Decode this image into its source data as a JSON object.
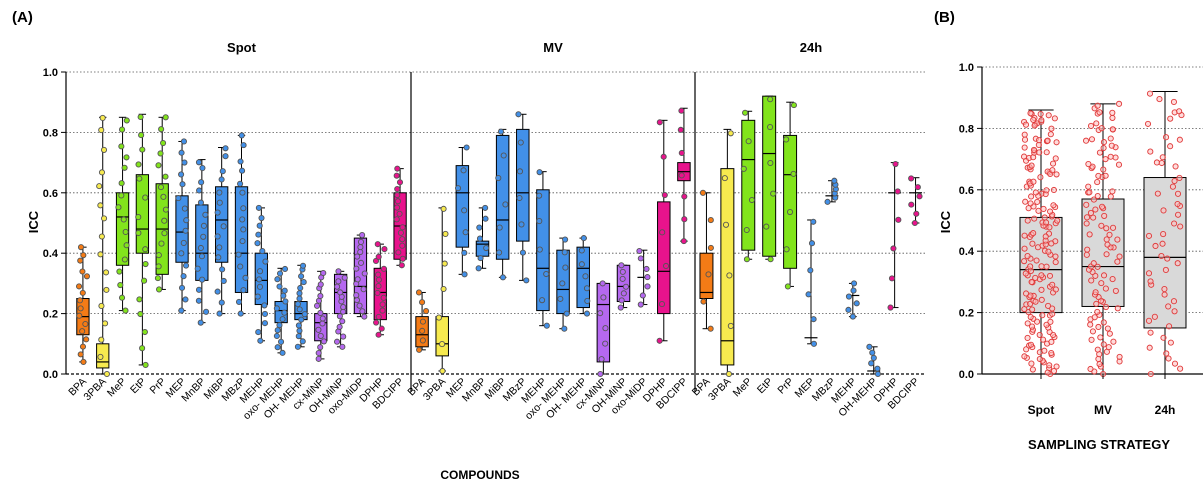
{
  "chart_data": [
    {
      "panel_label": "(A)",
      "type": "box",
      "ylabel": "ICC",
      "xlabel": "COMPOUNDS",
      "ylim": [
        0,
        1.0
      ],
      "yticks": [
        "0.0",
        "0.2",
        "0.4",
        "0.6",
        "0.8",
        "1.0"
      ],
      "grid": "horizontal dotted",
      "groups": [
        {
          "title": "Spot",
          "items": [
            {
              "label": "BPA",
              "color": "#f47b16",
              "min": 0.04,
              "q1": 0.13,
              "median": 0.19,
              "q3": 0.25,
              "max": 0.42
            },
            {
              "label": "3PBA",
              "color": "#f7ea4f",
              "min": 0.0,
              "q1": 0.02,
              "median": 0.04,
              "q3": 0.1,
              "max": 0.85
            },
            {
              "label": "MeP",
              "color": "#82e41c",
              "min": 0.21,
              "q1": 0.36,
              "median": 0.52,
              "q3": 0.6,
              "max": 0.85
            },
            {
              "label": "EtP",
              "color": "#82e41c",
              "min": 0.03,
              "q1": 0.4,
              "median": 0.48,
              "q3": 0.66,
              "max": 0.86
            },
            {
              "label": "PrP",
              "color": "#82e41c",
              "min": 0.28,
              "q1": 0.33,
              "median": 0.48,
              "q3": 0.63,
              "max": 0.85
            },
            {
              "label": "MEP",
              "color": "#4290e8",
              "min": 0.21,
              "q1": 0.37,
              "median": 0.47,
              "q3": 0.59,
              "max": 0.77
            },
            {
              "label": "MnBP",
              "color": "#4290e8",
              "min": 0.17,
              "q1": 0.31,
              "median": 0.4,
              "q3": 0.56,
              "max": 0.71
            },
            {
              "label": "MiBP",
              "color": "#4290e8",
              "min": 0.2,
              "q1": 0.37,
              "median": 0.51,
              "q3": 0.62,
              "max": 0.75
            },
            {
              "label": "MBzP",
              "color": "#4290e8",
              "min": 0.2,
              "q1": 0.27,
              "median": 0.4,
              "q3": 0.62,
              "max": 0.79
            },
            {
              "label": "MEHP",
              "color": "#4290e8",
              "min": 0.11,
              "q1": 0.23,
              "median": 0.31,
              "q3": 0.4,
              "max": 0.55
            },
            {
              "label": "oxo- MEHP",
              "color": "#4290e8",
              "min": 0.07,
              "q1": 0.17,
              "median": 0.21,
              "q3": 0.24,
              "max": 0.35
            },
            {
              "label": "OH- MEHP",
              "color": "#4290e8",
              "min": 0.09,
              "q1": 0.18,
              "median": 0.2,
              "q3": 0.24,
              "max": 0.36
            },
            {
              "label": "cx-MiNP",
              "color": "#b568f0",
              "min": 0.05,
              "q1": 0.11,
              "median": 0.17,
              "q3": 0.2,
              "max": 0.34
            },
            {
              "label": "OH-MiNP",
              "color": "#b568f0",
              "min": 0.09,
              "q1": 0.2,
              "median": 0.27,
              "q3": 0.33,
              "max": 0.34
            },
            {
              "label": "oxo-MiDP",
              "color": "#b568f0",
              "min": 0.19,
              "q1": 0.2,
              "median": 0.29,
              "q3": 0.45,
              "max": 0.46
            },
            {
              "label": "DPHP",
              "color": "#e8138c",
              "min": 0.13,
              "q1": 0.18,
              "median": 0.27,
              "q3": 0.35,
              "max": 0.43
            },
            {
              "label": "BDCIPP",
              "color": "#e8138c",
              "min": 0.36,
              "q1": 0.38,
              "median": 0.49,
              "q3": 0.6,
              "max": 0.68
            }
          ]
        },
        {
          "title": "MV",
          "items": [
            {
              "label": "BPA",
              "color": "#f47b16",
              "min": 0.08,
              "q1": 0.09,
              "median": 0.13,
              "q3": 0.19,
              "max": 0.27
            },
            {
              "label": "3PBA",
              "color": "#f7ea4f",
              "min": 0.01,
              "q1": 0.06,
              "median": 0.1,
              "q3": 0.19,
              "max": 0.55
            },
            {
              "label": "MEP",
              "color": "#4290e8",
              "min": 0.33,
              "q1": 0.42,
              "median": 0.6,
              "q3": 0.69,
              "max": 0.75
            },
            {
              "label": "MnBP",
              "color": "#4290e8",
              "min": 0.35,
              "q1": 0.39,
              "median": 0.43,
              "q3": 0.44,
              "max": 0.55
            },
            {
              "label": "MiBP",
              "color": "#4290e8",
              "min": 0.32,
              "q1": 0.38,
              "median": 0.51,
              "q3": 0.79,
              "max": 0.81
            },
            {
              "label": "MBzP",
              "color": "#4290e8",
              "min": 0.31,
              "q1": 0.44,
              "median": 0.6,
              "q3": 0.81,
              "max": 0.86
            },
            {
              "label": "MEHP",
              "color": "#4290e8",
              "min": 0.16,
              "q1": 0.21,
              "median": 0.35,
              "q3": 0.61,
              "max": 0.67
            },
            {
              "label": "oxo- MEHP",
              "color": "#4290e8",
              "min": 0.15,
              "q1": 0.2,
              "median": 0.28,
              "q3": 0.41,
              "max": 0.45
            },
            {
              "label": "OH- MEHP",
              "color": "#4290e8",
              "min": 0.2,
              "q1": 0.22,
              "median": 0.35,
              "q3": 0.42,
              "max": 0.45
            },
            {
              "label": "cx-MiNP",
              "color": "#b568f0",
              "min": 0.0,
              "q1": 0.04,
              "median": 0.23,
              "q3": 0.3,
              "max": 0.3
            },
            {
              "label": "OH-MiNP",
              "color": "#b568f0",
              "min": 0.22,
              "q1": 0.24,
              "median": 0.29,
              "q3": 0.36,
              "max": 0.36
            },
            {
              "label": "oxo-MiDP",
              "color": "#b568f0",
              "min": 0.23,
              "q1": 0.32,
              "median": 0.32,
              "q3": 0.32,
              "max": 0.41
            },
            {
              "label": "DPHP",
              "color": "#e8138c",
              "min": 0.11,
              "q1": 0.2,
              "median": 0.34,
              "q3": 0.57,
              "max": 0.84
            },
            {
              "label": "BDCIPP",
              "color": "#e8138c",
              "min": 0.44,
              "q1": 0.64,
              "median": 0.67,
              "q3": 0.7,
              "max": 0.88
            }
          ]
        },
        {
          "title": "24h",
          "items": [
            {
              "label": "BPA",
              "color": "#f47b16",
              "min": 0.15,
              "q1": 0.25,
              "median": 0.27,
              "q3": 0.4,
              "max": 0.6
            },
            {
              "label": "3PBA",
              "color": "#f7ea4f",
              "min": 0.0,
              "q1": 0.03,
              "median": 0.11,
              "q3": 0.68,
              "max": 0.81
            },
            {
              "label": "MeP",
              "color": "#82e41c",
              "min": 0.38,
              "q1": 0.41,
              "median": 0.71,
              "q3": 0.84,
              "max": 0.87
            },
            {
              "label": "EtP",
              "color": "#82e41c",
              "min": 0.38,
              "q1": 0.39,
              "median": 0.73,
              "q3": 0.92,
              "max": 0.92
            },
            {
              "label": "PrP",
              "color": "#82e41c",
              "min": 0.29,
              "q1": 0.35,
              "median": 0.66,
              "q3": 0.79,
              "max": 0.9
            },
            {
              "label": "MEP",
              "color": "#4290e8",
              "min": 0.1,
              "q1": 0.12,
              "median": 0.12,
              "q3": 0.12,
              "max": 0.51
            },
            {
              "label": "MBzP",
              "color": "#4290e8",
              "min": 0.57,
              "q1": 0.59,
              "median": 0.59,
              "q3": 0.59,
              "max": 0.64
            },
            {
              "label": "MEHP",
              "color": "#4290e8",
              "min": 0.19,
              "q1": 0.26,
              "median": 0.26,
              "q3": 0.26,
              "max": 0.3
            },
            {
              "label": "OH-MEHP",
              "color": "#4290e8",
              "min": 0.0,
              "q1": 0.01,
              "median": 0.01,
              "q3": 0.01,
              "max": 0.09
            },
            {
              "label": "DPHP",
              "color": "#e8138c",
              "min": 0.22,
              "q1": 0.6,
              "median": 0.6,
              "q3": 0.6,
              "max": 0.7
            },
            {
              "label": "BDCIPP",
              "color": "#e8138c",
              "min": 0.5,
              "q1": 0.6,
              "median": 0.6,
              "q3": 0.6,
              "max": 0.65
            }
          ]
        }
      ]
    },
    {
      "panel_label": "(B)",
      "type": "box",
      "ylabel": "ICC",
      "xlabel": "SAMPLING STRATEGY",
      "ylim": [
        0,
        1.0
      ],
      "yticks": [
        "0.0",
        "0.2",
        "0.4",
        "0.6",
        "0.8",
        "1.0"
      ],
      "grid": "horizontal dotted",
      "items": [
        {
          "label": "Spot",
          "color": "#d9d9d9",
          "min": 0.0,
          "q1": 0.2,
          "median": 0.34,
          "q3": 0.51,
          "max": 0.86
        },
        {
          "label": "MV",
          "color": "#d9d9d9",
          "min": 0.0,
          "q1": 0.22,
          "median": 0.35,
          "q3": 0.57,
          "max": 0.88
        },
        {
          "label": "24h",
          "color": "#d9d9d9",
          "min": 0.0,
          "q1": 0.15,
          "median": 0.38,
          "q3": 0.64,
          "max": 0.92
        }
      ]
    }
  ]
}
